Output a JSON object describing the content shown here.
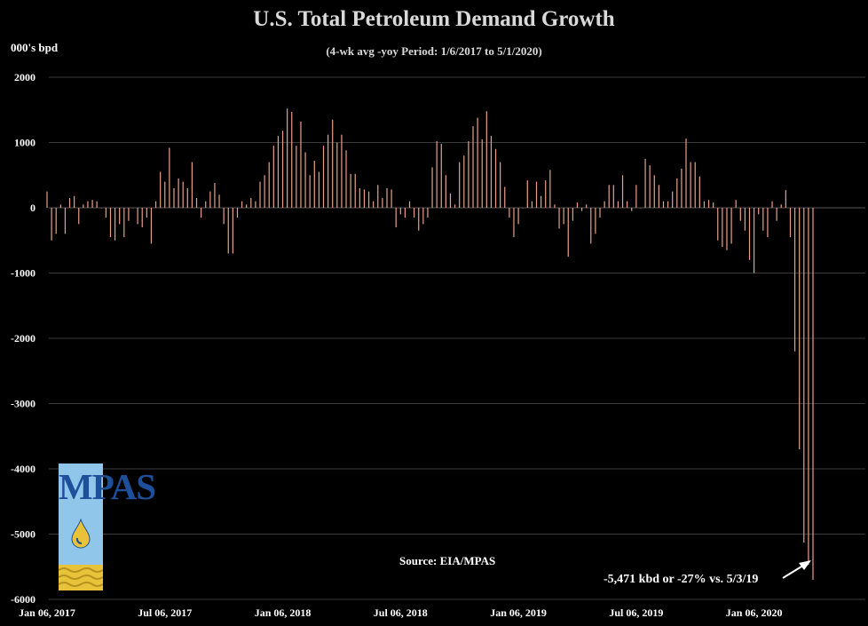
{
  "header": {
    "title": "U.S. Total Petroleum Demand Growth",
    "subtitle": "(4-wk avg -yoy Period: 1/6/2017 to 5/1/2020)",
    "unit_label": "000's bpd"
  },
  "source_label": "Source: EIA/MPAS",
  "annotation": "-5,471 kbd or -27% vs. 5/3/19",
  "logo": {
    "text": "MPAS",
    "colors": {
      "background": "#8fc6ea",
      "text": "#1e4f9a",
      "drop": "#e8c33a",
      "waves": "#e8c33a"
    }
  },
  "chart_data": {
    "type": "bar",
    "title": "U.S. Total Petroleum Demand Growth",
    "subtitle": "(4-wk avg -yoy Period: 1/6/2017 to 5/1/2020)",
    "ylabel": "000's bpd",
    "ylim": [
      -6000,
      2000
    ],
    "yticks": [
      2000,
      1000,
      0,
      -1000,
      -2000,
      -3000,
      -4000,
      -5000,
      -6000
    ],
    "ytick_labels": [
      "2000",
      "1000",
      "0",
      "-1000",
      "-2000",
      "-3000",
      "-4000",
      "-5000",
      "-6000"
    ],
    "xtick_labels": [
      "Jan 06, 2017",
      "Jul 06, 2017",
      "Jan 06, 2018",
      "Jul 06, 2018",
      "Jan 06, 2019",
      "Jul 06, 2019",
      "Jan 06, 2020"
    ],
    "grid": true,
    "bar_color": "#e8a08a",
    "period": "1/6/2017 to 5/1/2020",
    "values": [
      250,
      -500,
      -400,
      50,
      -400,
      150,
      180,
      -250,
      50,
      100,
      120,
      100,
      0,
      -150,
      -450,
      -500,
      -250,
      -450,
      -200,
      0,
      -250,
      -300,
      -150,
      -550,
      100,
      550,
      400,
      920,
      300,
      450,
      400,
      300,
      700,
      150,
      -150,
      100,
      250,
      380,
      200,
      -250,
      -700,
      -700,
      -150,
      100,
      50,
      150,
      100,
      400,
      500,
      700,
      950,
      1100,
      1180,
      1520,
      1470,
      950,
      1320,
      850,
      500,
      720,
      550,
      950,
      1120,
      1350,
      1000,
      1120,
      880,
      520,
      520,
      300,
      280,
      250,
      100,
      350,
      150,
      300,
      280,
      -300,
      -100,
      -150,
      100,
      -150,
      -350,
      -250,
      -150,
      620,
      1020,
      980,
      500,
      220,
      50,
      700,
      800,
      1020,
      1250,
      1380,
      1050,
      1480,
      1100,
      900,
      700,
      320,
      -150,
      -450,
      -250,
      0,
      420,
      100,
      400,
      180,
      420,
      580,
      50,
      -320,
      -250,
      -750,
      -200,
      80,
      -50,
      50,
      -550,
      -400,
      -150,
      100,
      350,
      350,
      100,
      500,
      100,
      -50,
      350,
      0,
      750,
      650,
      500,
      350,
      100,
      100,
      250,
      450,
      600,
      1060,
      700,
      700,
      480,
      100,
      120,
      80,
      -500,
      -600,
      -650,
      -550,
      120,
      -200,
      -350,
      -800,
      -1000,
      -100,
      -350,
      -450,
      100,
      -200,
      50,
      270,
      -450,
      -2200,
      -3700,
      -5130,
      -5471,
      -5700
    ]
  }
}
